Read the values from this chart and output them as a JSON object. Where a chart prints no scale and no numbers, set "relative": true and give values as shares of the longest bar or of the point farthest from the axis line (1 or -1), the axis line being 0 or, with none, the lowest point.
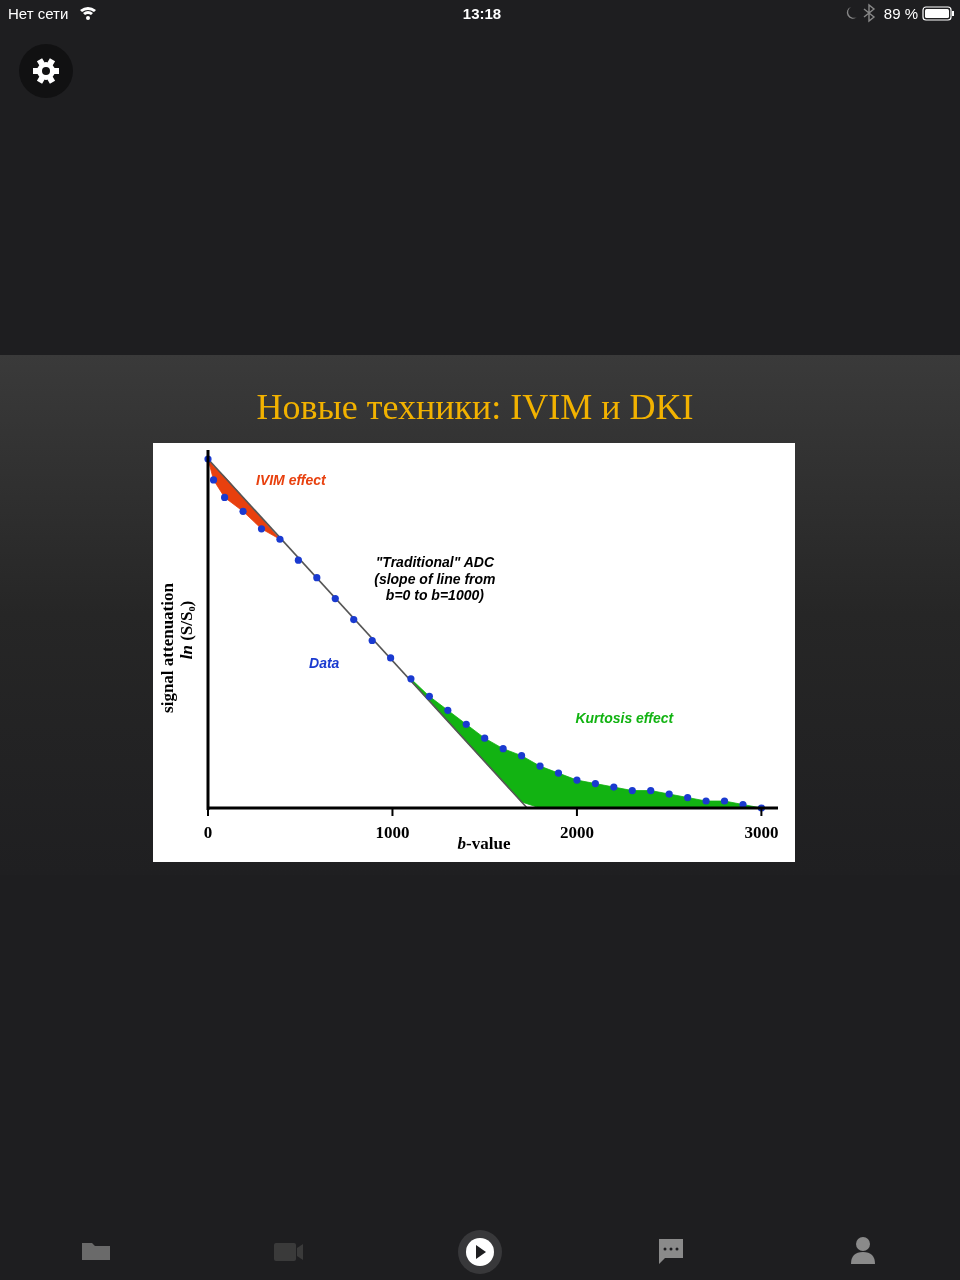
{
  "chart_data": {
    "type": "scatter",
    "title": "Новые техники: IVIM и DKI",
    "xlabel": "b-value",
    "ylabel": "signal attenuation\nln (S/S₀)",
    "relative": true,
    "xlim": [
      0,
      3090
    ],
    "xticks": [
      0,
      1000,
      2000,
      3000
    ],
    "annotations": [
      "Нет сети",
      "13:18",
      "89 %"
    ],
    "series": [
      {
        "type": "area",
        "name": "IVIM effect",
        "color": "#e8400e",
        "x": [
          0,
          30,
          90,
          190,
          290,
          390
        ],
        "values": [
          1,
          0.98,
          0.95,
          0.89,
          0.83,
          0.77
        ]
      },
      {
        "type": "area",
        "name": "Kurtosis effect",
        "color": "#12b312",
        "x": [
          1100,
          1200,
          1300,
          1400,
          1500,
          1600,
          1700,
          1800,
          1900,
          2000,
          2100,
          2200,
          2300,
          2400,
          2500,
          2600,
          2700,
          2800,
          2900,
          3000
        ],
        "values": [
          0.37,
          0.32,
          0.28,
          0.24,
          0.2,
          0.17,
          0.15,
          0.12,
          0.1,
          0.08,
          0.07,
          0.06,
          0.05,
          0.05,
          0.04,
          0.03,
          0.02,
          0.02,
          0.01,
          0
        ]
      },
      {
        "type": "line",
        "name": "\"Traditional\" ADC (slope of line from b=0 to b=1000)",
        "color": "#555555",
        "line_style": "solid",
        "x": [
          0,
          1730
        ],
        "values": [
          1,
          0
        ]
      },
      {
        "type": "scatter",
        "name": "Data",
        "color": "#1a3ad0",
        "marker": "circle",
        "x": [
          0,
          30,
          90,
          190,
          290,
          390,
          490,
          590,
          690,
          790,
          890,
          990,
          1100,
          1200,
          1300,
          1400,
          1500,
          1600,
          1700,
          1800,
          1900,
          2000,
          2100,
          2200,
          2300,
          2400,
          2500,
          2600,
          2700,
          2800,
          2900,
          3000
        ],
        "values": [
          1,
          0.94,
          0.89,
          0.85,
          0.8,
          0.77,
          0.71,
          0.66,
          0.6,
          0.54,
          0.48,
          0.43,
          0.37,
          0.32,
          0.28,
          0.24,
          0.2,
          0.17,
          0.15,
          0.12,
          0.1,
          0.08,
          0.07,
          0.06,
          0.05,
          0.05,
          0.04,
          0.03,
          0.02,
          0.02,
          0.01,
          0
        ]
      }
    ]
  }
}
